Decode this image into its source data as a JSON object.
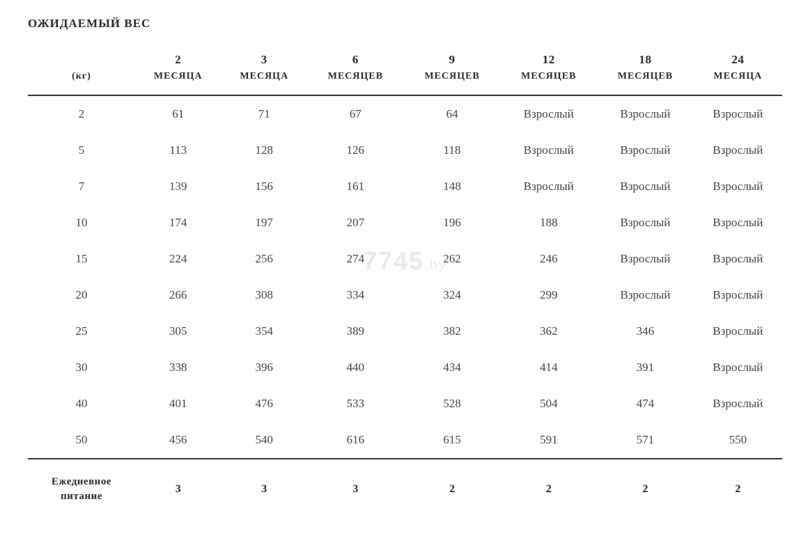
{
  "title": "ОЖИДАЕМЫЙ ВЕС",
  "watermark_main": "7745",
  "watermark_suffix": ".by",
  "table": {
    "kg_label": "(кг)",
    "period_numbers": [
      "2",
      "3",
      "6",
      "9",
      "12",
      "18",
      "24"
    ],
    "period_labels": [
      "МЕСЯЦА",
      "МЕСЯЦА",
      "МЕСЯЦЕВ",
      "МЕСЯЦЕВ",
      "МЕСЯЦЕВ",
      "МЕСЯЦЕВ",
      "МЕСЯЦА"
    ],
    "weights": [
      "2",
      "5",
      "7",
      "10",
      "15",
      "20",
      "25",
      "30",
      "40",
      "50"
    ],
    "rows": [
      [
        "61",
        "71",
        "67",
        "64",
        "Взрослый",
        "Взрослый",
        "Взрослый"
      ],
      [
        "113",
        "128",
        "126",
        "118",
        "Взрослый",
        "Взрослый",
        "Взрослый"
      ],
      [
        "139",
        "156",
        "161",
        "148",
        "Взрослый",
        "Взрослый",
        "Взрослый"
      ],
      [
        "174",
        "197",
        "207",
        "196",
        "188",
        "Взрослый",
        "Взрослый"
      ],
      [
        "224",
        "256",
        "274",
        "262",
        "246",
        "Взрослый",
        "Взрослый"
      ],
      [
        "266",
        "308",
        "334",
        "324",
        "299",
        "Взрослый",
        "Взрослый"
      ],
      [
        "305",
        "354",
        "389",
        "382",
        "362",
        "346",
        "Взрослый"
      ],
      [
        "338",
        "396",
        "440",
        "434",
        "414",
        "391",
        "Взрослый"
      ],
      [
        "401",
        "476",
        "533",
        "528",
        "504",
        "474",
        "Взрослый"
      ],
      [
        "456",
        "540",
        "616",
        "615",
        "591",
        "571",
        "550"
      ]
    ],
    "footer_label_line1": "Ежедневное",
    "footer_label_line2": "питание",
    "footer_values": [
      "3",
      "3",
      "3",
      "2",
      "2",
      "2",
      "2"
    ]
  },
  "style": {
    "background_color": "#ffffff",
    "text_color": "#333333",
    "cell_color": "#444444",
    "border_color": "#333333",
    "title_fontsize": 17,
    "header_fontsize": 15,
    "cell_fontsize": 17,
    "watermark_color": "rgba(170,170,170,0.25)"
  }
}
